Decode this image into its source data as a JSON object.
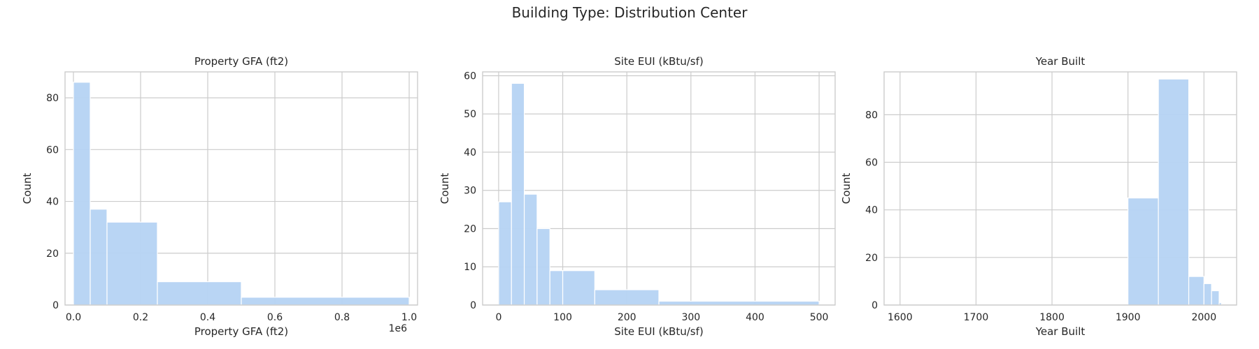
{
  "figure": {
    "suptitle": "Building Type: Distribution Center"
  },
  "colors": {
    "bar": "#b5d3f3",
    "bar_edge": "#ffffff",
    "grid": "#cccccc",
    "spine": "#cccccc"
  },
  "chart_data": [
    {
      "type": "bar",
      "title": "Property GFA (ft2)",
      "xlabel": "Property GFA (ft2)",
      "ylabel": "Count",
      "offset_text": "1e6",
      "xlim": [
        -0.025,
        1.025
      ],
      "ylim": [
        0,
        90
      ],
      "xticks": [
        0.0,
        0.2,
        0.4,
        0.6,
        0.8,
        1.0
      ],
      "xtick_labels": [
        "0.0",
        "0.2",
        "0.4",
        "0.6",
        "0.8",
        "1.0"
      ],
      "yticks": [
        0,
        20,
        40,
        60,
        80
      ],
      "yvals_labels": [
        "0",
        "20",
        "40",
        "60",
        "80"
      ],
      "grid": true,
      "bins": [
        {
          "start": 0.0,
          "end": 0.05,
          "count": 86
        },
        {
          "start": 0.05,
          "end": 0.1,
          "count": 37
        },
        {
          "start": 0.1,
          "end": 0.25,
          "count": 32
        },
        {
          "start": 0.25,
          "end": 0.5,
          "count": 9
        },
        {
          "start": 0.5,
          "end": 1.0,
          "count": 3
        }
      ]
    },
    {
      "type": "bar",
      "title": "Site EUI (kBtu/sf)",
      "xlabel": "Site EUI (kBtu/sf)",
      "ylabel": "Count",
      "xlim": [
        -25,
        525
      ],
      "ylim": [
        0,
        61
      ],
      "xticks": [
        0,
        100,
        200,
        300,
        400,
        500
      ],
      "xtick_labels": [
        "0",
        "100",
        "200",
        "300",
        "400",
        "500"
      ],
      "yticks": [
        0,
        10,
        20,
        30,
        40,
        50,
        60
      ],
      "yvals_labels": [
        "0",
        "10",
        "20",
        "30",
        "40",
        "50",
        "60"
      ],
      "grid": true,
      "bins": [
        {
          "start": 0,
          "end": 20,
          "count": 27
        },
        {
          "start": 20,
          "end": 40,
          "count": 58
        },
        {
          "start": 40,
          "end": 60,
          "count": 29
        },
        {
          "start": 60,
          "end": 80,
          "count": 20
        },
        {
          "start": 80,
          "end": 100,
          "count": 9
        },
        {
          "start": 100,
          "end": 150,
          "count": 9
        },
        {
          "start": 150,
          "end": 250,
          "count": 4
        },
        {
          "start": 250,
          "end": 500,
          "count": 1
        }
      ]
    },
    {
      "type": "bar",
      "title": "Year Built",
      "xlabel": "Year Built",
      "ylabel": "Count",
      "xlim": [
        1579,
        2043
      ],
      "ylim": [
        0,
        98
      ],
      "xticks": [
        1600,
        1700,
        1800,
        1900,
        2000
      ],
      "xtick_labels": [
        "1600",
        "1700",
        "1800",
        "1900",
        "2000"
      ],
      "yticks": [
        0,
        20,
        40,
        60,
        80
      ],
      "yvals_labels": [
        "0",
        "20",
        "40",
        "60",
        "80"
      ],
      "grid": true,
      "bins": [
        {
          "start": 1600,
          "end": 1900,
          "count": 0
        },
        {
          "start": 1900,
          "end": 1940,
          "count": 45
        },
        {
          "start": 1940,
          "end": 1980,
          "count": 95
        },
        {
          "start": 1980,
          "end": 2000,
          "count": 12
        },
        {
          "start": 2000,
          "end": 2010,
          "count": 9
        },
        {
          "start": 2010,
          "end": 2020,
          "count": 6
        },
        {
          "start": 2020,
          "end": 2023,
          "count": 1
        }
      ]
    }
  ]
}
